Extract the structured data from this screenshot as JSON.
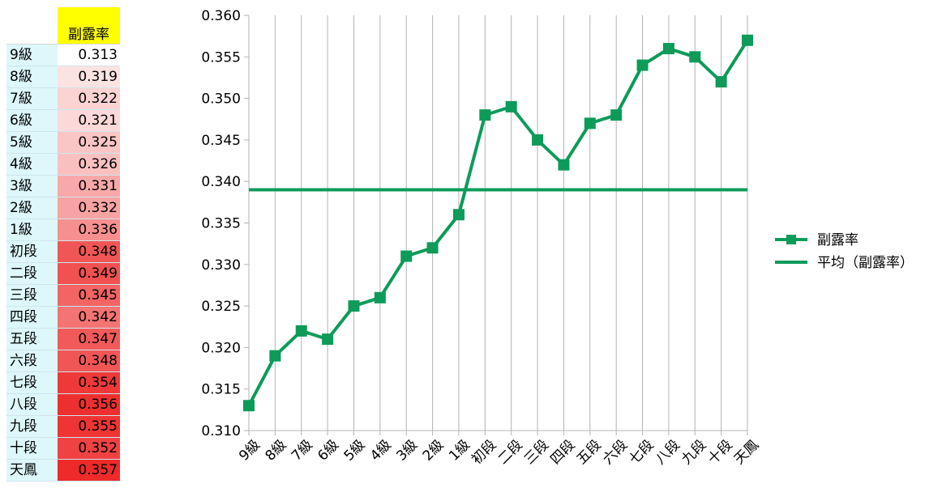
{
  "table": {
    "value_header": "副露率",
    "rows": [
      {
        "rank": "9級",
        "value": "0.313"
      },
      {
        "rank": "8級",
        "value": "0.319"
      },
      {
        "rank": "7級",
        "value": "0.322"
      },
      {
        "rank": "6級",
        "value": "0.321"
      },
      {
        "rank": "5級",
        "value": "0.325"
      },
      {
        "rank": "4級",
        "value": "0.326"
      },
      {
        "rank": "3級",
        "value": "0.331"
      },
      {
        "rank": "2級",
        "value": "0.332"
      },
      {
        "rank": "1級",
        "value": "0.336"
      },
      {
        "rank": "初段",
        "value": "0.348"
      },
      {
        "rank": "二段",
        "value": "0.349"
      },
      {
        "rank": "三段",
        "value": "0.345"
      },
      {
        "rank": "四段",
        "value": "0.342"
      },
      {
        "rank": "五段",
        "value": "0.347"
      },
      {
        "rank": "六段",
        "value": "0.348"
      },
      {
        "rank": "七段",
        "value": "0.354"
      },
      {
        "rank": "八段",
        "value": "0.356"
      },
      {
        "rank": "九段",
        "value": "0.355"
      },
      {
        "rank": "十段",
        "value": "0.352"
      },
      {
        "rank": "天鳳",
        "value": "0.357"
      }
    ]
  },
  "chart_data": {
    "type": "line",
    "categories": [
      "9級",
      "8級",
      "7級",
      "6級",
      "5級",
      "4級",
      "3級",
      "2級",
      "1級",
      "初段",
      "二段",
      "三段",
      "四段",
      "五段",
      "六段",
      "七段",
      "八段",
      "九段",
      "十段",
      "天鳳"
    ],
    "series": [
      {
        "name": "副露率",
        "values": [
          0.313,
          0.319,
          0.322,
          0.321,
          0.325,
          0.326,
          0.331,
          0.332,
          0.336,
          0.348,
          0.349,
          0.345,
          0.342,
          0.347,
          0.348,
          0.354,
          0.356,
          0.355,
          0.352,
          0.357
        ],
        "color": "#0d9b5a",
        "marker": "square"
      },
      {
        "name": "平均（副露率）",
        "value": 0.339,
        "color": "#0d9b5a",
        "style": "constant-line"
      }
    ],
    "ylim": [
      0.31,
      0.36
    ],
    "yticks": [
      "0.310",
      "0.315",
      "0.320",
      "0.325",
      "0.330",
      "0.335",
      "0.340",
      "0.345",
      "0.350",
      "0.355",
      "0.360"
    ],
    "grid": "vertical",
    "legend": "right",
    "title": "",
    "xlabel": "",
    "ylabel": ""
  },
  "colors": {
    "line": "#0d9b5a",
    "header_bg": "#ffff00",
    "rank_bg": "#ddf7fb",
    "grid": "#b3b3b3",
    "heat_low": "#ffffff",
    "heat_high": "#ee2a2a"
  }
}
